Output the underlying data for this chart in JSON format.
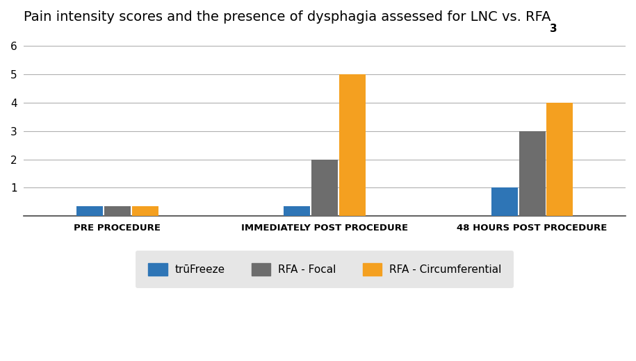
{
  "title": "Pain intensity scores and the presence of dysphagia assessed for LNC vs. RFA",
  "superscript": "3",
  "categories": [
    "PRE PROCEDURE",
    "IMMEDIATELY POST PROCEDURE",
    "48 HOURS POST PROCEDURE"
  ],
  "series": {
    "truFreeze": [
      0.35,
      0.35,
      1.0
    ],
    "RFA_Focal": [
      0.35,
      2.0,
      3.0
    ],
    "RFA_Circumferential": [
      0.35,
      5.0,
      4.0
    ]
  },
  "colors": {
    "truFreeze": "#2E75B6",
    "RFA_Focal": "#6D6D6D",
    "RFA_Circumferential": "#F4A020"
  },
  "legend_labels": {
    "truFreeze": "trūFreeze",
    "RFA_Focal": "RFA - Focal",
    "RFA_Circumferential": "RFA - Circumferential"
  },
  "ylim": [
    0,
    6.4
  ],
  "yticks": [
    0,
    1,
    2,
    3,
    4,
    5,
    6
  ],
  "bar_width": 0.28,
  "group_positions": [
    1.0,
    3.2,
    5.4
  ],
  "background_color": "#ffffff",
  "legend_bg": "#e0e0e0",
  "title_fontsize": 14,
  "axis_label_fontsize": 9.5,
  "tick_fontsize": 11,
  "legend_fontsize": 11
}
